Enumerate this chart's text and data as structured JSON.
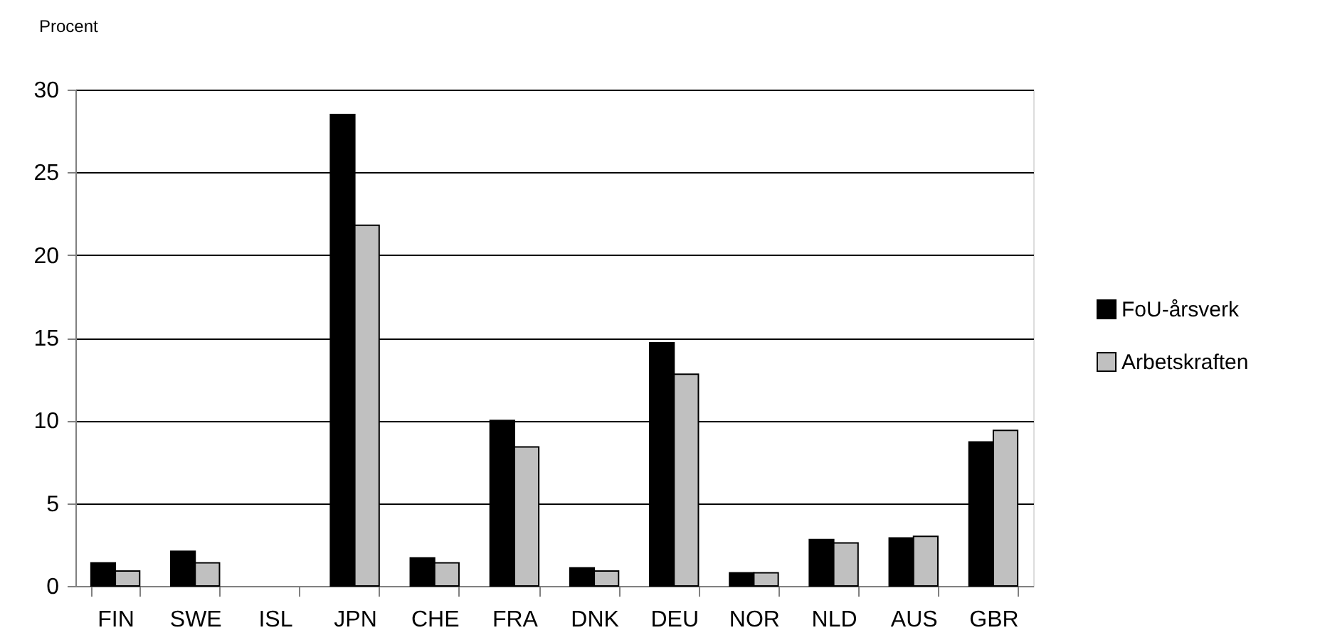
{
  "chart_data": {
    "type": "bar",
    "ylabel": "Procent",
    "categories": [
      "FIN",
      "SWE",
      "ISL",
      "JPN",
      "CHE",
      "FRA",
      "DNK",
      "DEU",
      "NOR",
      "NLD",
      "AUS",
      "GBR"
    ],
    "series": [
      {
        "name": "FoU-årsverk",
        "color": "#000000",
        "values": [
          1.4,
          2.1,
          null,
          28.5,
          1.7,
          10.0,
          1.1,
          14.7,
          0.8,
          2.8,
          2.9,
          8.7
        ]
      },
      {
        "name": "Arbetskraften",
        "color": "#c0c0c0",
        "values": [
          0.9,
          1.4,
          null,
          21.8,
          1.4,
          8.4,
          0.9,
          12.8,
          0.8,
          2.6,
          3.0,
          9.4
        ]
      }
    ],
    "ylim": [
      0,
      30
    ],
    "yticks": [
      0,
      5,
      10,
      15,
      20,
      25,
      30
    ],
    "grid": "y",
    "legend": "right"
  }
}
